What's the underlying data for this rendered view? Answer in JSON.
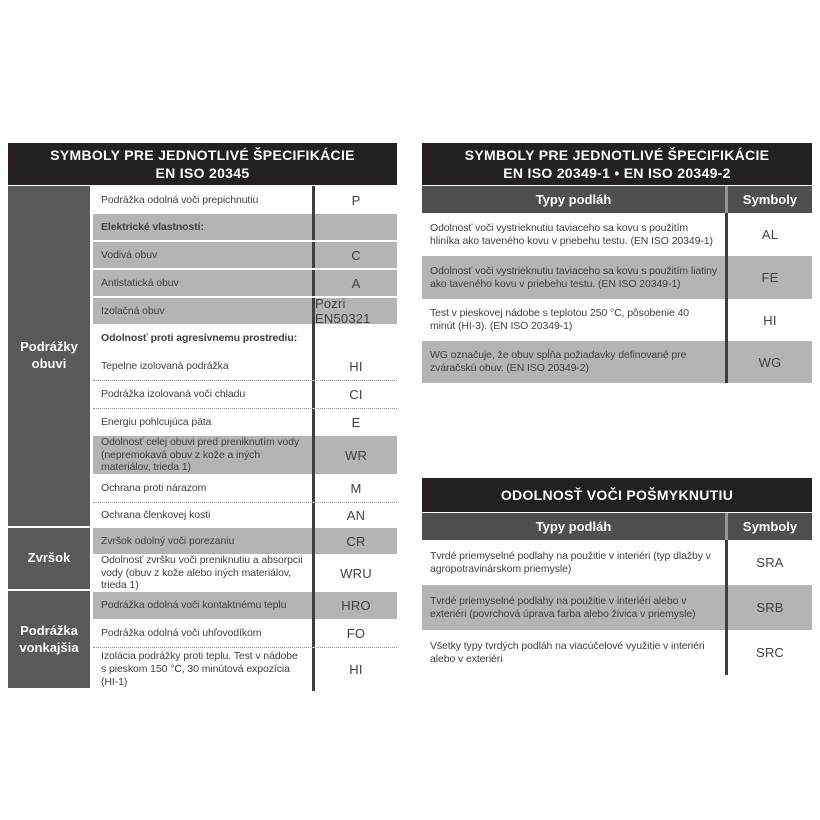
{
  "colors": {
    "header_bg": "#242021",
    "category_bg": "#59585a",
    "subheader_bg": "#4f4f51",
    "gray_row_bg": "#b4b4b4",
    "text": "#413f41",
    "divider": "#3e3d3f"
  },
  "left_table": {
    "title1": "SYMBOLY PRE JEDNOTLIVÉ ŠPECIFIKÁCIE",
    "title2": "EN ISO 20345",
    "categories": [
      {
        "label": "Podrážky obuvi"
      },
      {
        "label": "Zvršok"
      },
      {
        "label": "Podrážka vonkajšia"
      }
    ],
    "rows": [
      {
        "text": "Podrážka odolná voči prepichnutiu",
        "symbol": "P"
      },
      {
        "text": "Elektrické vlastnosti:",
        "symbol": ""
      },
      {
        "text": "Vodivá obuv",
        "symbol": "C"
      },
      {
        "text": "Antistatická obuv",
        "symbol": "A"
      },
      {
        "text": "Izolačná obuv",
        "symbol": "Pozri EN50321"
      },
      {
        "text": "Odolnosť proti agresívnemu prostrediu:",
        "symbol": ""
      },
      {
        "text": "Tepelne izolovaná podrážka",
        "symbol": "HI"
      },
      {
        "text": "Podrážka izolovaná voči chladu",
        "symbol": "CI"
      },
      {
        "text": "Energiu pohlcujúca päta",
        "symbol": "E"
      },
      {
        "text": "Odolnosť celej obuvi pred preniknutím vody (nepremokavá obuv z kože a iných materiálov, trieda 1)",
        "symbol": "WR"
      },
      {
        "text": "Ochrana proti nárazom",
        "symbol": "M"
      },
      {
        "text": "Ochrana členkovej kosti",
        "symbol": "AN"
      },
      {
        "text": "Zvršok odolný voči porezaniu",
        "symbol": "CR"
      },
      {
        "text": "Odolnosť zvršku voči preniknutiu a absorpcii vody (obuv z kože alebo iných materiálov, trieda 1)",
        "symbol": "WRU"
      },
      {
        "text": "Podrážka odolná voči kontaktnému teplu",
        "symbol": "HRO"
      },
      {
        "text": "Podrážka odolná voči uhľovodíkom",
        "symbol": "FO"
      },
      {
        "text": "Izolácia podrážky proti teplu. Test v nádobe s pieskom 150 °C, 30 minútová expozícia (HI-1)",
        "symbol": "HI"
      }
    ]
  },
  "right_table_1": {
    "title1": "SYMBOLY PRE JEDNOTLIVÉ ŠPECIFIKÁCIE",
    "title2": "EN ISO 20349-1 • EN ISO 20349-2",
    "col_types": "Typy podláh",
    "col_symbols": "Symboly",
    "rows": [
      {
        "text": "Odolnosť voči vystrieknutiu taviaceho sa kovu s použitím hliníka ako taveného kovu v priebehu testu. (EN ISO 20349-1)",
        "symbol": "AL"
      },
      {
        "text": "Odolnosť voči vystrieknutiu taviaceho sa kovu s použitím liatiny ako taveného kovu v priebehu testu. (EN ISO 20349-1)",
        "symbol": "FE"
      },
      {
        "text": "Test v pieskovej nádobe s teplotou 250 °C, pôsobenie 40 minút (HI-3). (EN ISO 20349-1)",
        "symbol": "HI"
      },
      {
        "text": "WG označuje, že obuv spĺňa požiadavky definované pre zváračskú obuv. (EN ISO 20349-2)",
        "symbol": "WG"
      }
    ]
  },
  "right_table_2": {
    "title": "ODOLNOSŤ VOČI POŠMYKNUTIU",
    "col_types": "Typy podláh",
    "col_symbols": "Symboly",
    "rows": [
      {
        "text": "Tvrdé priemyselné podlahy na použitie v interiéri (typ dlažby v agropotravinárskom priemysle)",
        "symbol": "SRA"
      },
      {
        "text": "Tvrdé priemyselné podlahy na použitie v interiéri alebo v exteriéri (povrchová úprava farba alebo živica v priemysle)",
        "symbol": "SRB"
      },
      {
        "text": "Všetky typy tvrdých podláh na viacúčelové využitie v interiéri alebo v exteriéri",
        "symbol": "SRC"
      }
    ]
  }
}
